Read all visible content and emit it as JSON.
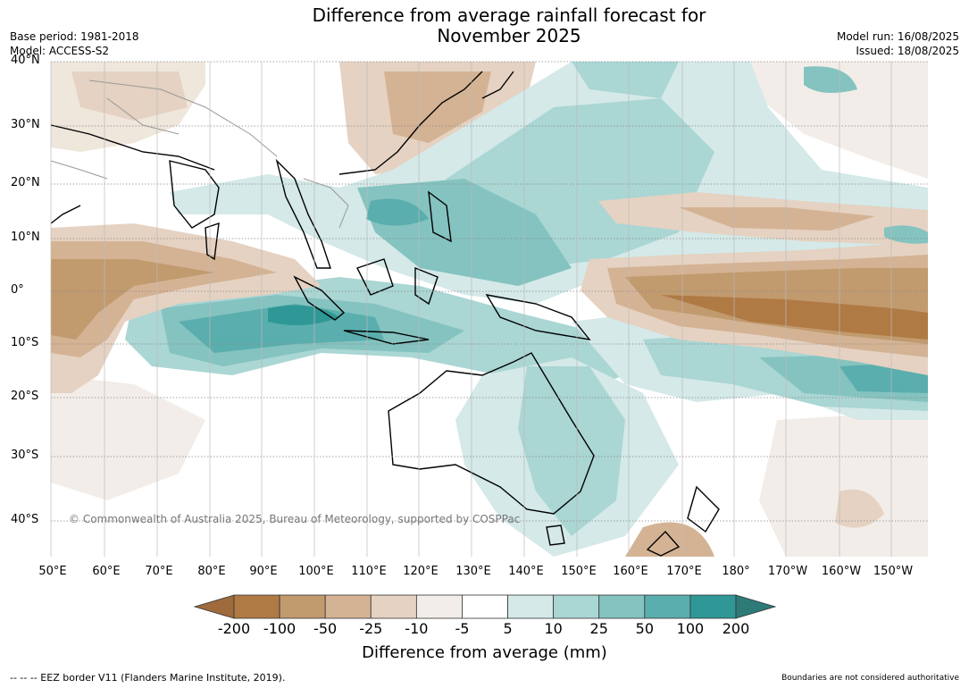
{
  "title_line1": "Difference from average rainfall forecast for",
  "title_line2": "November 2025",
  "base_period": "Base period: 1981-2018",
  "model": "Model: ACCESS-S2",
  "model_run": "Model run: 16/08/2025",
  "issued": "Issued: 18/08/2025",
  "copyright": "© Commonwealth of Australia 2025, Bureau of Meteorology, supported by COSPPac",
  "lat_labels": [
    "40°N",
    "30°N",
    "20°N",
    "10°N",
    "0°",
    "10°S",
    "20°S",
    "30°S",
    "40°S"
  ],
  "lon_labels": [
    "50°E",
    "60°E",
    "70°E",
    "80°E",
    "90°E",
    "100°E",
    "110°E",
    "120°E",
    "130°E",
    "140°E",
    "150°E",
    "160°E",
    "170°E",
    "180°",
    "170°W",
    "160°W",
    "150°W"
  ],
  "colorbar": {
    "ticks": [
      "-200",
      "-100",
      "-50",
      "-25",
      "-10",
      "-5",
      "5",
      "10",
      "25",
      "50",
      "100",
      "200"
    ],
    "colors": [
      "#a06b3c",
      "#b07a45",
      "#c19a6e",
      "#d4b394",
      "#e5d2c2",
      "#f2ede8",
      "#ffffff",
      "#d4e9e8",
      "#aad6d4",
      "#84c3c0",
      "#5aaead",
      "#2f9896",
      "#2e7a78"
    ],
    "title": "Difference from average (mm)"
  },
  "footer_left": "--  --  -- EEZ border V11 (Flanders Marine Institute, 2019).",
  "footer_right": "Boundaries are not considered authoritative"
}
